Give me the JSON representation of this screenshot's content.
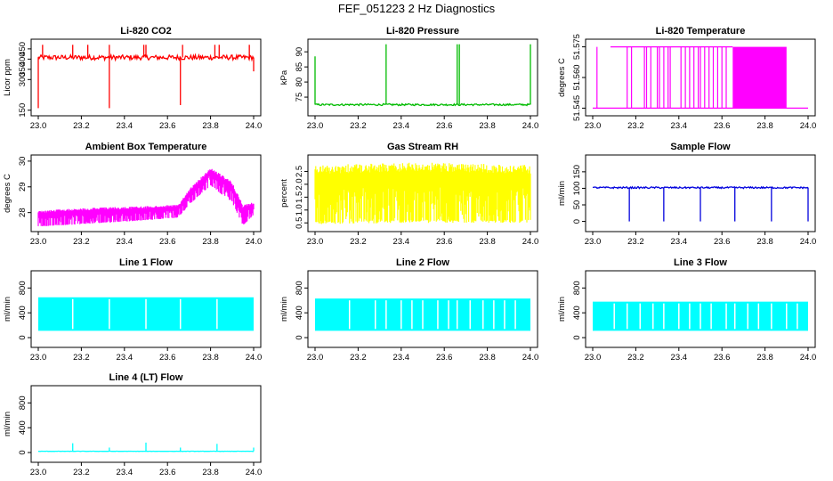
{
  "figure_title": "FEF_051223  2 Hz Diagnostics",
  "chart_data": [
    {
      "id": "co2",
      "type": "line",
      "title": "Li-820 CO2",
      "ylabel": "Licor ppm",
      "color": "#ff0000",
      "xlim": [
        23.0,
        24.0
      ],
      "ylim": [
        140,
        480
      ],
      "yticks": [
        150,
        300,
        350,
        400,
        450
      ],
      "xticks": [
        23.0,
        23.2,
        23.4,
        23.6,
        23.8,
        24.0
      ],
      "baseline": 408,
      "noise": 12,
      "spikes_up": [
        [
          23.02,
          470
        ],
        [
          23.16,
          470
        ],
        [
          23.23,
          470
        ],
        [
          23.33,
          470
        ],
        [
          23.49,
          470
        ],
        [
          23.5,
          470
        ],
        [
          23.67,
          470
        ],
        [
          23.82,
          470
        ],
        [
          23.84,
          470
        ],
        [
          23.98,
          470
        ]
      ],
      "spikes_down": [
        [
          23.0,
          160
        ],
        [
          23.33,
          160
        ],
        [
          23.66,
          175
        ],
        [
          24.0,
          340
        ]
      ]
    },
    {
      "id": "pressure",
      "type": "line",
      "title": "Li-820 Pressure",
      "ylabel": "kPa",
      "color": "#00bb00",
      "xlim": [
        23.0,
        24.0
      ],
      "ylim": [
        70,
        93
      ],
      "yticks": [
        75,
        80,
        85,
        90
      ],
      "xticks": [
        23.0,
        23.2,
        23.4,
        23.6,
        23.8,
        24.0
      ],
      "baseline": 72.5,
      "noise": 0.3,
      "spikes_up": [
        [
          23.0,
          88.5
        ],
        [
          23.33,
          92.5
        ],
        [
          23.66,
          92.5
        ],
        [
          23.67,
          92.5
        ],
        [
          24.0,
          92.5
        ]
      ],
      "spikes_down": []
    },
    {
      "id": "temperature",
      "type": "binary",
      "title": "Li-820 Temperature",
      "ylabel": "degrees C",
      "color": "#ff00ff",
      "xlim": [
        23.0,
        24.0
      ],
      "ylim": [
        51.543,
        51.577
      ],
      "yticks": [
        51.545,
        51.56,
        51.575
      ],
      "ytick_labels": [
        "51.545",
        "51.560",
        "51.575"
      ],
      "xticks": [
        23.0,
        23.2,
        23.4,
        23.6,
        23.8,
        24.0
      ],
      "low": 51.545,
      "high": 51.575,
      "dense_from": 23.65,
      "dense_to": 23.9
    },
    {
      "id": "box_temp",
      "type": "band",
      "title": "Ambient Box Temperature",
      "ylabel": "degrees C",
      "color": "#ff00ff",
      "xlim": [
        23.0,
        24.0
      ],
      "ylim": [
        27.4,
        30.1
      ],
      "yticks": [
        28,
        29,
        30
      ],
      "xticks": [
        23.0,
        23.2,
        23.4,
        23.6,
        23.8,
        24.0
      ],
      "profile": [
        [
          23.0,
          27.45,
          28.05
        ],
        [
          23.1,
          27.5,
          28.15
        ],
        [
          23.3,
          27.6,
          28.2
        ],
        [
          23.5,
          27.7,
          28.25
        ],
        [
          23.65,
          27.8,
          28.3
        ],
        [
          23.7,
          28.3,
          28.9
        ],
        [
          23.8,
          29.05,
          29.75
        ],
        [
          23.9,
          28.4,
          29.2
        ],
        [
          23.95,
          27.5,
          28.3
        ],
        [
          24.0,
          27.9,
          28.4
        ]
      ]
    },
    {
      "id": "rh",
      "type": "band",
      "title": "Gas Stream RH",
      "ylabel": "percent",
      "color": "#ffff00",
      "xlim": [
        23.0,
        24.0
      ],
      "ylim": [
        0.3,
        3.0
      ],
      "yticks": [
        0.5,
        1.0,
        1.5,
        2.0,
        2.5
      ],
      "ytick_labels": [
        "0.5",
        "1.0",
        "1.5",
        "2.0",
        "2.5"
      ],
      "xticks": [
        23.0,
        23.2,
        23.4,
        23.6,
        23.8,
        24.0
      ],
      "profile": [
        [
          23.0,
          0.45,
          2.75
        ],
        [
          23.5,
          0.5,
          2.85
        ],
        [
          24.0,
          0.5,
          2.75
        ]
      ]
    },
    {
      "id": "sample_flow",
      "type": "line",
      "title": "Sample Flow",
      "ylabel": "ml/min",
      "color": "#0000dd",
      "xlim": [
        23.0,
        24.0
      ],
      "ylim": [
        -20,
        190
      ],
      "yticks": [
        0,
        50,
        100,
        150
      ],
      "xticks": [
        23.0,
        23.2,
        23.4,
        23.6,
        23.8,
        24.0
      ],
      "baseline": 102,
      "noise": 2.5,
      "spikes_up": [],
      "spikes_down": [
        [
          23.17,
          0
        ],
        [
          23.33,
          0
        ],
        [
          23.5,
          0
        ],
        [
          23.66,
          0
        ],
        [
          23.83,
          0
        ],
        [
          24.0,
          0
        ]
      ]
    },
    {
      "id": "line1",
      "type": "gapband",
      "title": "Line 1 Flow",
      "ylabel": "ml/min",
      "color": "#00ffff",
      "xlim": [
        23.0,
        24.0
      ],
      "ylim": [
        -100,
        1020
      ],
      "yticks": [
        0,
        400,
        800
      ],
      "xticks": [
        23.0,
        23.2,
        23.4,
        23.6,
        23.8,
        24.0
      ],
      "lo": 110,
      "hi": 650,
      "gaps": [
        23.16,
        23.33,
        23.5,
        23.66,
        23.83
      ]
    },
    {
      "id": "line2",
      "type": "gapband",
      "title": "Line 2 Flow",
      "ylabel": "ml/min",
      "color": "#00ffff",
      "xlim": [
        23.0,
        24.0
      ],
      "ylim": [
        -100,
        1020
      ],
      "yticks": [
        0,
        400,
        800
      ],
      "xticks": [
        23.0,
        23.2,
        23.4,
        23.6,
        23.8,
        24.0
      ],
      "lo": 110,
      "hi": 630,
      "gaps": [
        23.16,
        23.28,
        23.33,
        23.4,
        23.45,
        23.5,
        23.57,
        23.62,
        23.66,
        23.72,
        23.78,
        23.83,
        23.88,
        23.93
      ]
    },
    {
      "id": "line3",
      "type": "gapband",
      "title": "Line 3 Flow",
      "ylabel": "ml/min",
      "color": "#00ffff",
      "xlim": [
        23.0,
        24.0
      ],
      "ylim": [
        -100,
        1020
      ],
      "yticks": [
        0,
        400,
        800
      ],
      "xticks": [
        23.0,
        23.2,
        23.4,
        23.6,
        23.8,
        24.0
      ],
      "lo": 110,
      "hi": 580,
      "gaps": [
        23.1,
        23.16,
        23.22,
        23.28,
        23.33,
        23.4,
        23.45,
        23.5,
        23.55,
        23.62,
        23.66,
        23.72,
        23.77,
        23.83,
        23.9,
        23.95
      ]
    },
    {
      "id": "line4",
      "type": "line",
      "title": "Line 4 (LT) Flow",
      "ylabel": "ml/min",
      "color": "#00ffff",
      "xlim": [
        23.0,
        24.0
      ],
      "ylim": [
        -100,
        1020
      ],
      "yticks": [
        0,
        400,
        800
      ],
      "xticks": [
        23.0,
        23.2,
        23.4,
        23.6,
        23.8,
        24.0
      ],
      "baseline": 20,
      "noise": 2,
      "spikes_up": [
        [
          23.16,
          150
        ],
        [
          23.33,
          80
        ],
        [
          23.5,
          160
        ],
        [
          23.66,
          80
        ],
        [
          23.83,
          140
        ],
        [
          24.0,
          80
        ]
      ],
      "spikes_down": []
    }
  ]
}
